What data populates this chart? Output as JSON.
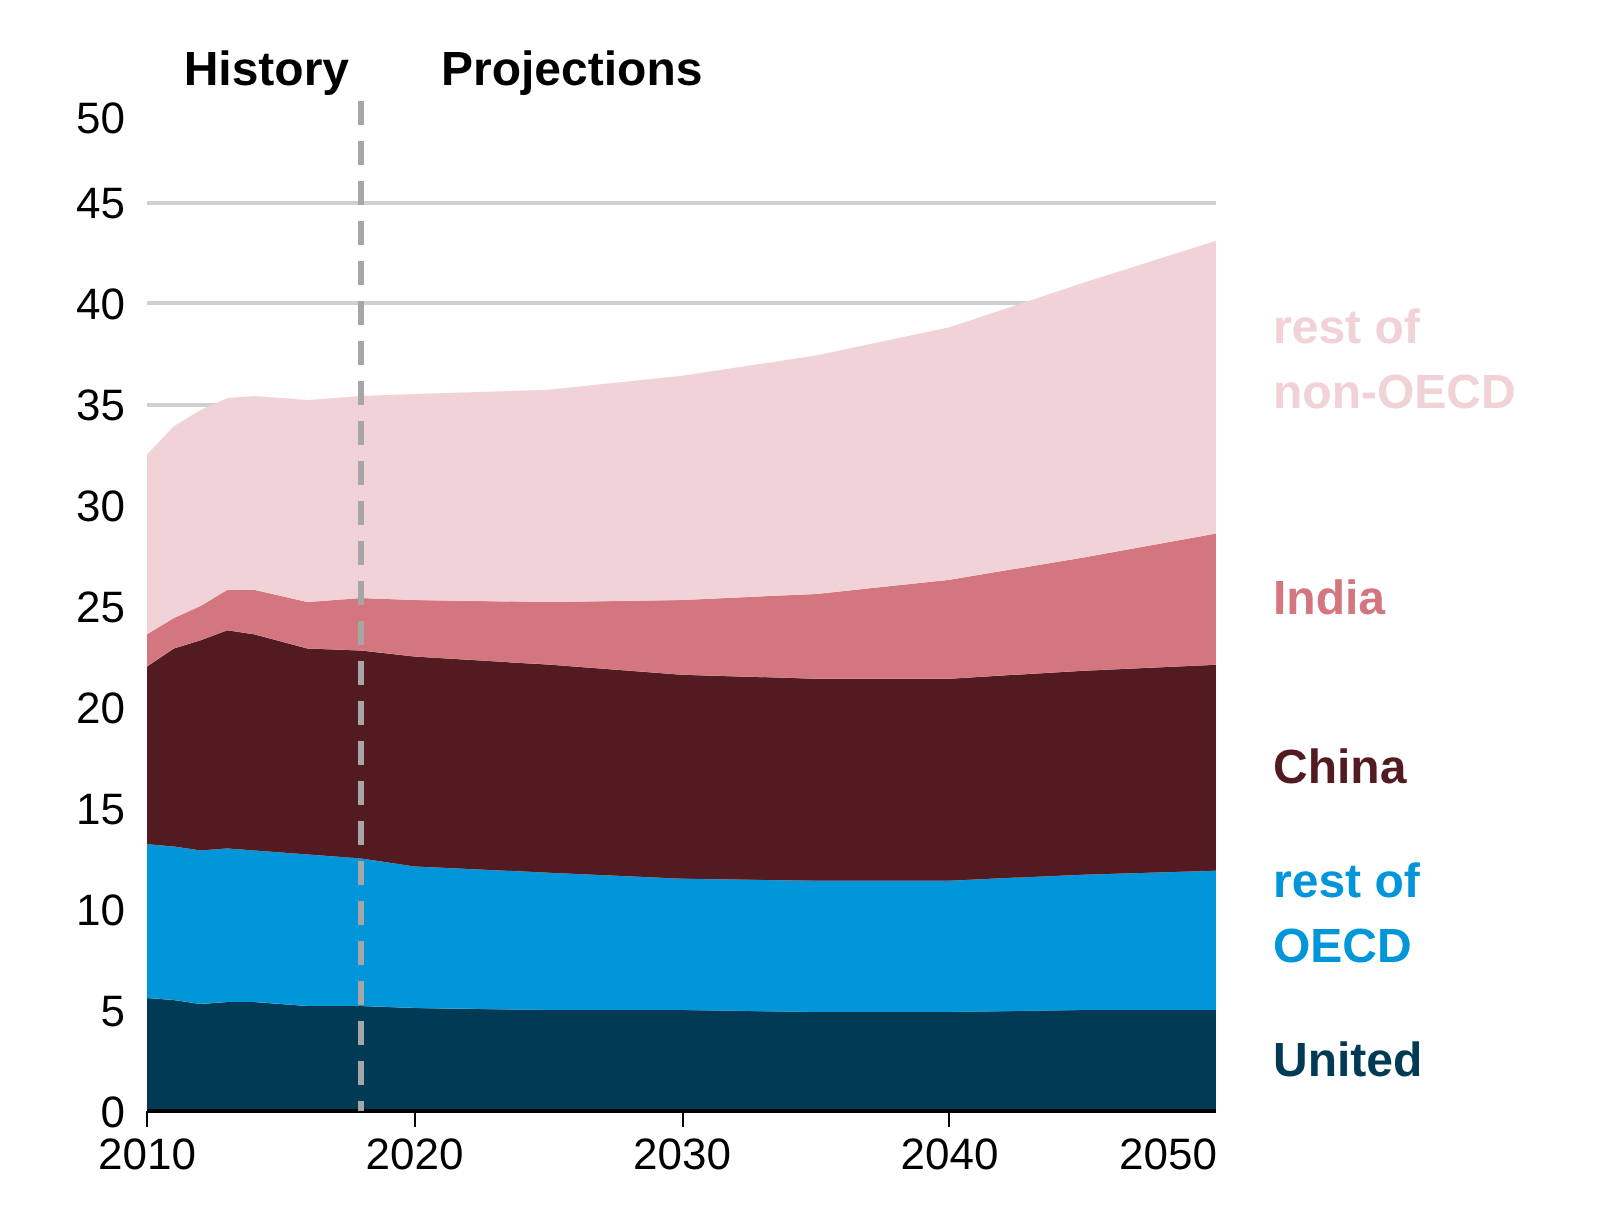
{
  "chart_data": {
    "type": "area",
    "stacked": true,
    "x": [
      2010,
      2011,
      2012,
      2013,
      2014,
      2016,
      2018,
      2020,
      2025,
      2030,
      2035,
      2040,
      2045,
      2050
    ],
    "series": [
      {
        "name": "United",
        "color": "#003a55",
        "values": [
          5.6,
          5.5,
          5.3,
          5.4,
          5.4,
          5.2,
          5.2,
          5.1,
          5.0,
          5.0,
          4.9,
          4.9,
          5.0,
          5.0
        ]
      },
      {
        "name": "rest of\nOECD",
        "color": "#0096d9",
        "values": [
          7.6,
          7.6,
          7.6,
          7.6,
          7.5,
          7.5,
          7.3,
          7.0,
          6.8,
          6.5,
          6.5,
          6.5,
          6.7,
          6.9
        ]
      },
      {
        "name": "China",
        "color": "#521b22",
        "values": [
          8.8,
          9.8,
          10.4,
          10.8,
          10.7,
          10.2,
          10.3,
          10.4,
          10.3,
          10.1,
          10.0,
          10.0,
          10.1,
          10.2
        ]
      },
      {
        "name": "India",
        "color": "#d47680",
        "values": [
          1.6,
          1.5,
          1.7,
          2.0,
          2.2,
          2.3,
          2.6,
          2.8,
          3.1,
          3.7,
          4.2,
          4.9,
          5.6,
          6.5
        ]
      },
      {
        "name": "rest of\nnon-OECD",
        "color": "#f0d2d7",
        "values": [
          8.9,
          9.5,
          9.7,
          9.5,
          9.6,
          10.0,
          10.0,
          10.2,
          10.5,
          11.1,
          11.8,
          12.5,
          13.6,
          14.5
        ]
      }
    ],
    "xlim": [
      2010,
      2050
    ],
    "xticks": [
      2010,
      2020,
      2030,
      2040,
      2050
    ],
    "ylim": [
      0,
      50
    ],
    "yticks": [
      0,
      5,
      10,
      15,
      20,
      25,
      30,
      35,
      40,
      45,
      50
    ],
    "grid": "y",
    "legend": false,
    "ref_lines": [
      {
        "axis": "x",
        "value": 2018,
        "color": "#a6a6a6",
        "line_style": "dashed"
      }
    ],
    "annotations": [
      "History",
      "Projections"
    ]
  }
}
